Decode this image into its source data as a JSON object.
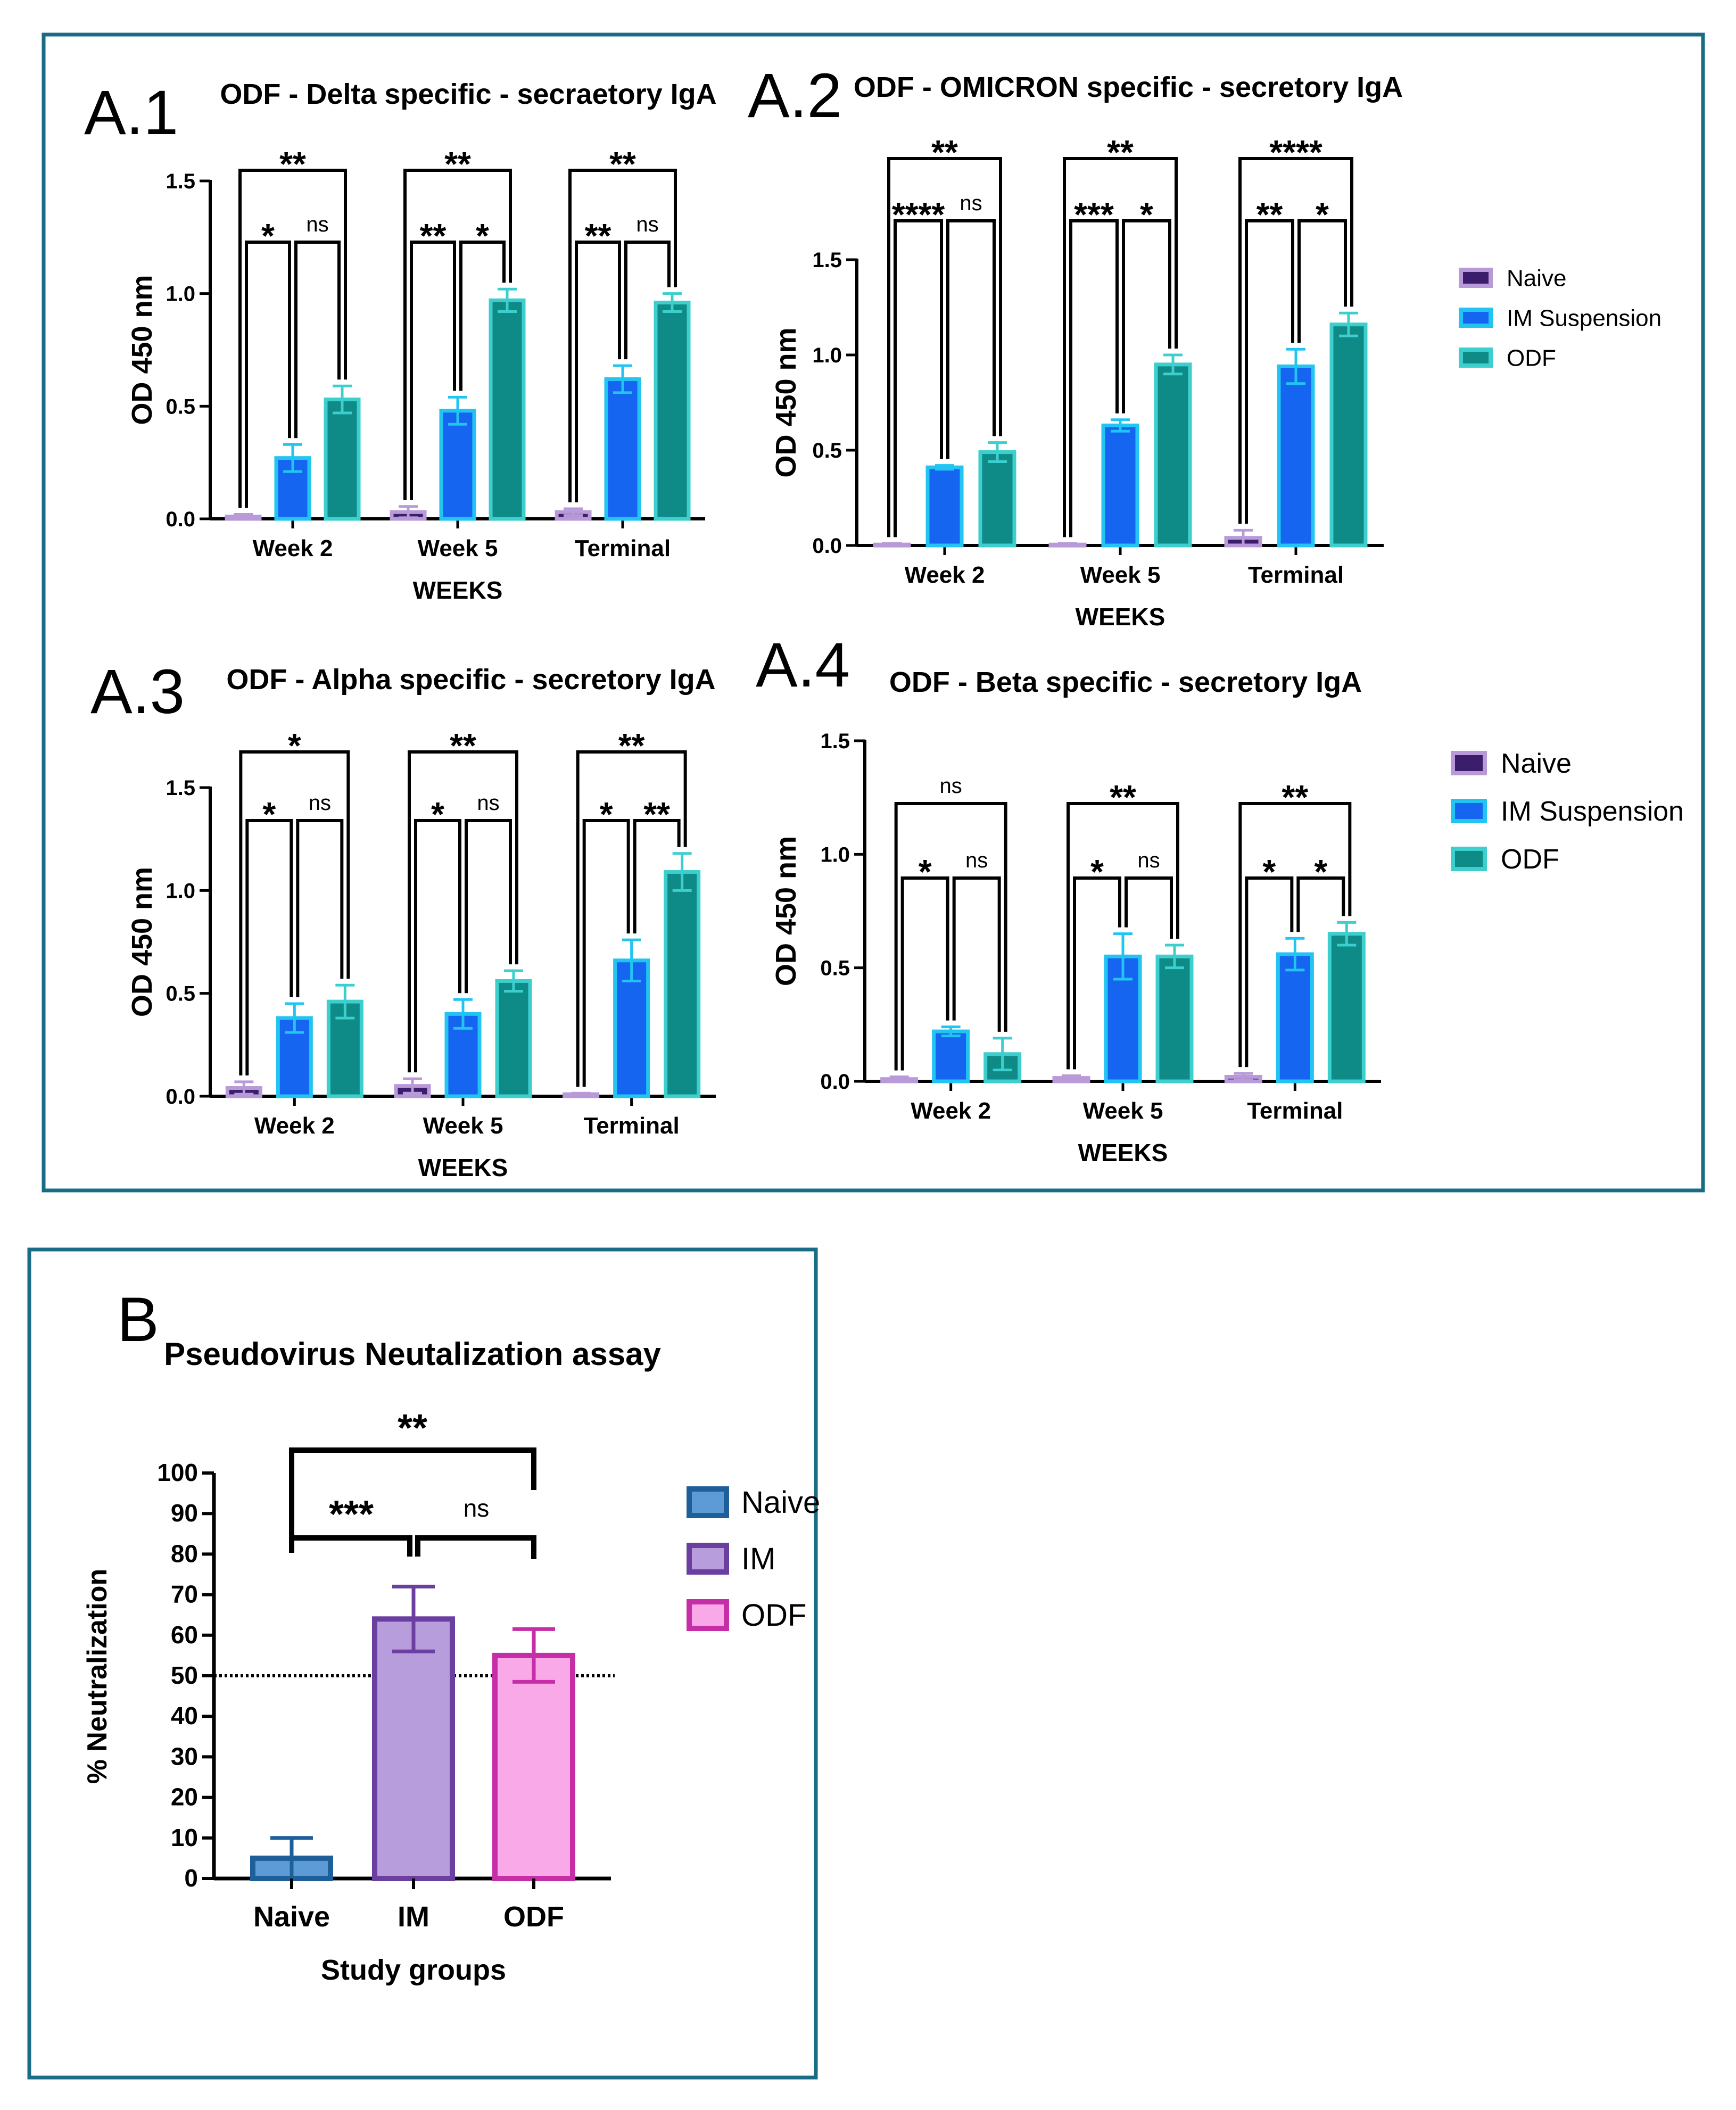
{
  "colors": {
    "frame": "#1a6c86",
    "naive_fill": "#3a1e6b",
    "naive_edge": "#b89ad9",
    "im_fill": "#1565f0",
    "im_edge": "#22c4f2",
    "odf_fill": "#0e8a87",
    "odf_edge": "#3ccfce",
    "b_naive_fill": "#5d9bd6",
    "b_naive_edge": "#1e5f9a",
    "b_im_fill": "#b79ddb",
    "b_im_edge": "#6b3fa0",
    "b_odf_fill": "#f9a8e8",
    "b_odf_edge": "#c62ea8"
  },
  "panel_labels": [
    "A.1",
    "A.2",
    "A.3",
    "A.4",
    "B"
  ],
  "legend_a": [
    "Naive",
    "IM Suspension",
    "ODF"
  ],
  "chart_data": [
    {
      "id": "A.1",
      "type": "bar",
      "title": "ODF - Delta specific - secraetory IgA",
      "xlabel": "WEEKS",
      "ylabel": "OD 450 nm",
      "ylim": [
        0,
        1.5
      ],
      "yticks": [
        0.0,
        0.5,
        1.0,
        1.5
      ],
      "ytick_labels": [
        "0.0",
        "0.5",
        "1.0",
        "1.5"
      ],
      "categories": [
        "Week 2",
        "Week 5",
        "Terminal"
      ],
      "series": [
        {
          "name": "Naive",
          "values": [
            0.01,
            0.03,
            0.03
          ],
          "errors": [
            0.01,
            0.025,
            0.015
          ]
        },
        {
          "name": "IM Suspension",
          "values": [
            0.27,
            0.48,
            0.62
          ],
          "errors": [
            0.06,
            0.06,
            0.06
          ]
        },
        {
          "name": "ODF",
          "values": [
            0.53,
            0.97,
            0.96
          ],
          "errors": [
            0.06,
            0.05,
            0.04
          ]
        }
      ],
      "significance": [
        [
          "**",
          "*",
          "ns"
        ],
        [
          "**",
          "**",
          "*"
        ],
        [
          "**",
          "**",
          "ns"
        ]
      ]
    },
    {
      "id": "A.2",
      "type": "bar",
      "title": "ODF - OMICRON specific - secretory IgA",
      "xlabel": "WEEKS",
      "ylabel": "OD 450 nm",
      "ylim": [
        0,
        1.5
      ],
      "yticks": [
        0.0,
        0.5,
        1.0,
        1.5
      ],
      "ytick_labels": [
        "0.0",
        "0.5",
        "1.0",
        "1.5"
      ],
      "categories": [
        "Week 2",
        "Week 5",
        "Terminal"
      ],
      "series": [
        {
          "name": "Naive",
          "values": [
            0.005,
            0.005,
            0.04
          ],
          "errors": [
            0.005,
            0.005,
            0.04
          ]
        },
        {
          "name": "IM Suspension",
          "values": [
            0.41,
            0.63,
            0.94
          ],
          "errors": [
            0.01,
            0.03,
            0.09
          ]
        },
        {
          "name": "ODF",
          "values": [
            0.49,
            0.95,
            1.16
          ],
          "errors": [
            0.05,
            0.05,
            0.06
          ]
        }
      ],
      "significance": [
        [
          "**",
          "****",
          "ns"
        ],
        [
          "**",
          "***",
          "*"
        ],
        [
          "****",
          "**",
          "*"
        ]
      ]
    },
    {
      "id": "A.3",
      "type": "bar",
      "title": "ODF - Alpha specific - secretory IgA",
      "xlabel": "WEEKS",
      "ylabel": "OD 450 nm",
      "ylim": [
        0,
        1.5
      ],
      "yticks": [
        0.0,
        0.5,
        1.0,
        1.5
      ],
      "ytick_labels": [
        "0.0",
        "0.5",
        "1.0",
        "1.5"
      ],
      "categories": [
        "Week 2",
        "Week 5",
        "Terminal"
      ],
      "series": [
        {
          "name": "Naive",
          "values": [
            0.04,
            0.05,
            0.01
          ],
          "errors": [
            0.03,
            0.035,
            0.005
          ]
        },
        {
          "name": "IM Suspension",
          "values": [
            0.38,
            0.4,
            0.66
          ],
          "errors": [
            0.07,
            0.07,
            0.1
          ]
        },
        {
          "name": "ODF",
          "values": [
            0.46,
            0.56,
            1.09
          ],
          "errors": [
            0.08,
            0.05,
            0.09
          ]
        }
      ],
      "significance": [
        [
          "*",
          "*",
          "ns"
        ],
        [
          "**",
          "*",
          "ns"
        ],
        [
          "**",
          "*",
          "**"
        ]
      ]
    },
    {
      "id": "A.4",
      "type": "bar",
      "title": "ODF - Beta specific - secretory IgA",
      "xlabel": "WEEKS",
      "ylabel": "OD 450 nm",
      "ylim": [
        0,
        1.5
      ],
      "yticks": [
        0.0,
        0.5,
        1.0,
        1.5
      ],
      "ytick_labels": [
        "0.0",
        "0.5",
        "1.0",
        "1.5"
      ],
      "categories": [
        "Week 2",
        "Week 5",
        "Terminal"
      ],
      "series": [
        {
          "name": "Naive",
          "values": [
            0.01,
            0.015,
            0.02
          ],
          "errors": [
            0.01,
            0.01,
            0.015
          ]
        },
        {
          "name": "IM Suspension",
          "values": [
            0.22,
            0.55,
            0.56
          ],
          "errors": [
            0.02,
            0.1,
            0.07
          ]
        },
        {
          "name": "ODF",
          "values": [
            0.12,
            0.55,
            0.65
          ],
          "errors": [
            0.07,
            0.05,
            0.05
          ]
        }
      ],
      "significance": [
        [
          "ns",
          "*",
          "ns"
        ],
        [
          "**",
          "*",
          "ns"
        ],
        [
          "**",
          "*",
          "*"
        ]
      ]
    },
    {
      "id": "B",
      "type": "bar",
      "title": "Pseudovirus Neutalization assay",
      "xlabel": "Study groups",
      "ylabel": "% Neutralization",
      "ylim": [
        0,
        100
      ],
      "yticks": [
        0,
        10,
        20,
        30,
        40,
        50,
        60,
        70,
        80,
        90,
        100
      ],
      "ytick_labels": [
        "0",
        "10",
        "20",
        "30",
        "40",
        "50",
        "60",
        "70",
        "80",
        "90",
        "100"
      ],
      "categories": [
        "Naive",
        "IM",
        "ODF"
      ],
      "values": [
        5,
        64,
        55
      ],
      "errors": [
        5,
        8,
        6.5
      ],
      "reference_line": 50,
      "legend": [
        "Naive",
        "IM",
        "ODF"
      ],
      "significance": {
        "naive_odf": "**",
        "naive_im": "***",
        "im_odf": "ns"
      }
    }
  ]
}
